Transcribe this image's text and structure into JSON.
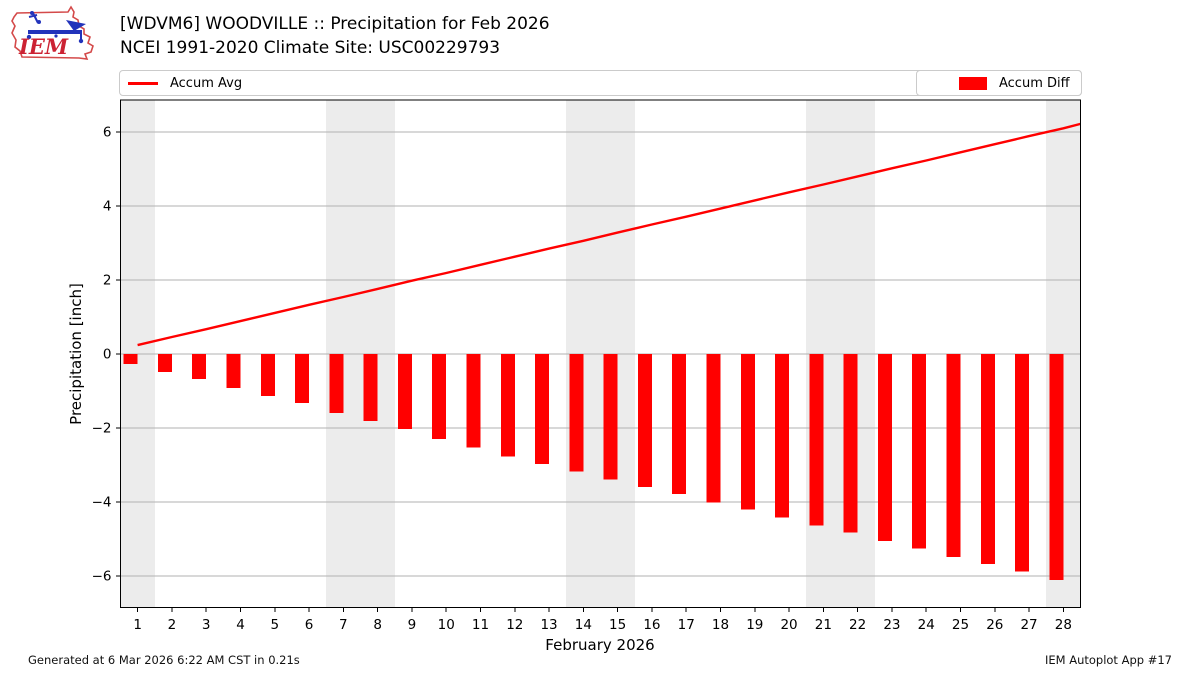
{
  "header": {
    "logo_text": "IEM",
    "title_line1": "[WDVM6] WOODVILLE :: Precipitation for Feb 2026",
    "title_line2": "NCEI 1991-2020 Climate Site: USC00229793"
  },
  "legend": {
    "line_label": "Accum Avg",
    "bar_label": "Accum Diff"
  },
  "footer": {
    "left": "Generated at 6 Mar 2026 6:22 AM CST in 0.21s",
    "right": "IEM Autoplot App #17"
  },
  "colors": {
    "accent_red": "#ff0000",
    "weekend_band": "#ececec",
    "gridline": "#b2b2b2",
    "spine": "#000000",
    "logo_red": "#d44a4a",
    "logo_blue": "#2233bb"
  },
  "chart_data": {
    "type": "bar",
    "title": "[WDVM6] WOODVILLE :: Precipitation for Feb 2026",
    "subtitle": "NCEI 1991-2020 Climate Site: USC00229793",
    "xlabel": "February 2026",
    "ylabel": "Precipitation [inch]",
    "x": [
      1,
      2,
      3,
      4,
      5,
      6,
      7,
      8,
      9,
      10,
      11,
      12,
      13,
      14,
      15,
      16,
      17,
      18,
      19,
      20,
      21,
      22,
      23,
      24,
      25,
      26,
      27,
      28
    ],
    "y_ticks": [
      -6,
      -4,
      -2,
      0,
      2,
      4,
      6
    ],
    "ylim": [
      -6.9,
      6.9
    ],
    "xlim": [
      0.5,
      28.5
    ],
    "grid": "horizontal",
    "legend_position": "top",
    "weekend_shaded_days": [
      1,
      7,
      8,
      14,
      15,
      21,
      22,
      28
    ],
    "series": [
      {
        "name": "Accum Avg",
        "type": "line",
        "color": "#ff0000",
        "values": [
          0.24,
          0.46,
          0.67,
          0.89,
          1.11,
          1.33,
          1.54,
          1.76,
          1.98,
          2.19,
          2.41,
          2.63,
          2.85,
          3.06,
          3.28,
          3.5,
          3.71,
          3.93,
          4.15,
          4.37,
          4.58,
          4.8,
          5.02,
          5.23,
          5.45,
          5.67,
          5.89,
          6.1
        ],
        "edge_extension_value": 6.22
      },
      {
        "name": "Accum Diff",
        "type": "bar",
        "color": "#ff0000",
        "values": [
          -0.27,
          -0.49,
          -0.68,
          -0.92,
          -1.14,
          -1.33,
          -1.59,
          -1.81,
          -2.03,
          -2.3,
          -2.53,
          -2.77,
          -2.97,
          -3.18,
          -3.39,
          -3.59,
          -3.79,
          -4.01,
          -4.2,
          -4.42,
          -4.63,
          -4.83,
          -5.05,
          -5.26,
          -5.48,
          -5.68,
          -5.88,
          -6.11
        ]
      }
    ]
  }
}
